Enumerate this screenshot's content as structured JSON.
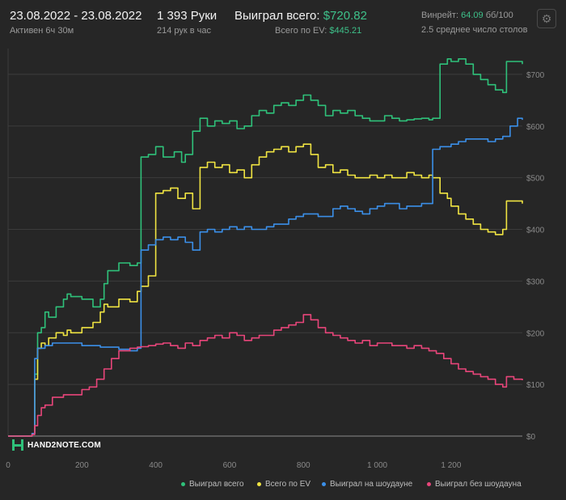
{
  "header": {
    "date_range": "23.08.2022 - 23.08.2022",
    "active": "Активен 6ч 30м",
    "hands": "1 393 Руки",
    "hands_per_hour": "214 рук в час",
    "won_total_label": "Выиграл всего:",
    "won_total_value": "$720.82",
    "ev_total_label": "Всего по EV:",
    "ev_total_value": "$445.21",
    "winrate_label": "Винрейт:",
    "winrate_value": "64.09",
    "winrate_unit": "бб/100",
    "avg_tables": "2.5 среднее число столов"
  },
  "logo": {
    "text": "HAND2NOTE.COM"
  },
  "colors": {
    "green": "#2fc17a",
    "yellow": "#f0e442",
    "blue": "#3b8fe8",
    "pink": "#e8457a"
  },
  "chart_data": {
    "type": "line",
    "x_tick_labels": [
      "0",
      "200",
      "400",
      "600",
      "800",
      "1 000",
      "1 200"
    ],
    "y_tick_labels": [
      "$0",
      "$100",
      "$200",
      "$300",
      "$400",
      "$500",
      "$600",
      "$700"
    ],
    "xlim": [
      0,
      1393
    ],
    "ylim": [
      0,
      750
    ],
    "grid": true,
    "legend_position": "bottom-right",
    "series": [
      {
        "name": "Выиграл всего",
        "color": "#2fc17a",
        "x": [
          0,
          65,
          72,
          80,
          90,
          100,
          110,
          130,
          150,
          160,
          170,
          200,
          230,
          250,
          260,
          270,
          300,
          330,
          350,
          360,
          380,
          400,
          420,
          450,
          470,
          480,
          500,
          520,
          540,
          560,
          580,
          600,
          620,
          640,
          660,
          680,
          700,
          720,
          740,
          760,
          780,
          800,
          820,
          840,
          860,
          880,
          900,
          920,
          940,
          960,
          980,
          1000,
          1020,
          1040,
          1060,
          1080,
          1100,
          1120,
          1140,
          1150,
          1170,
          1190,
          1200,
          1220,
          1240,
          1260,
          1280,
          1300,
          1320,
          1340,
          1350,
          1370,
          1393
        ],
        "y": [
          0,
          5,
          120,
          200,
          210,
          240,
          230,
          250,
          265,
          275,
          270,
          265,
          250,
          265,
          295,
          320,
          335,
          330,
          335,
          540,
          545,
          560,
          540,
          550,
          530,
          545,
          590,
          615,
          600,
          610,
          605,
          610,
          595,
          600,
          620,
          630,
          625,
          640,
          645,
          640,
          650,
          660,
          650,
          640,
          620,
          630,
          625,
          630,
          620,
          615,
          610,
          610,
          620,
          615,
          610,
          612,
          614,
          615,
          612,
          615,
          720,
          730,
          725,
          730,
          720,
          700,
          690,
          680,
          670,
          665,
          725,
          725,
          720
        ]
      },
      {
        "name": "Всего по EV",
        "color": "#f0e442",
        "x": [
          0,
          65,
          72,
          80,
          90,
          100,
          110,
          130,
          150,
          160,
          170,
          200,
          230,
          250,
          260,
          270,
          300,
          330,
          350,
          360,
          380,
          400,
          420,
          440,
          460,
          480,
          500,
          520,
          540,
          560,
          580,
          600,
          620,
          640,
          660,
          680,
          700,
          720,
          740,
          760,
          780,
          800,
          820,
          840,
          860,
          880,
          900,
          920,
          940,
          960,
          980,
          1000,
          1020,
          1040,
          1060,
          1080,
          1100,
          1120,
          1140,
          1150,
          1170,
          1190,
          1200,
          1220,
          1240,
          1260,
          1280,
          1300,
          1320,
          1340,
          1350,
          1370,
          1393
        ],
        "y": [
          0,
          5,
          110,
          170,
          180,
          175,
          190,
          200,
          195,
          205,
          200,
          210,
          220,
          240,
          255,
          250,
          265,
          260,
          280,
          290,
          310,
          470,
          475,
          480,
          460,
          470,
          440,
          520,
          530,
          520,
          525,
          510,
          515,
          500,
          525,
          540,
          550,
          555,
          560,
          550,
          560,
          565,
          545,
          520,
          525,
          510,
          515,
          505,
          500,
          500,
          505,
          500,
          505,
          500,
          500,
          510,
          505,
          500,
          505,
          500,
          470,
          460,
          445,
          430,
          420,
          410,
          400,
          395,
          390,
          400,
          455,
          455,
          450
        ]
      },
      {
        "name": "Выиграл на шоудауне",
        "color": "#3b8fe8",
        "x": [
          0,
          65,
          72,
          80,
          100,
          120,
          150,
          200,
          250,
          300,
          330,
          350,
          360,
          380,
          400,
          420,
          440,
          460,
          480,
          500,
          520,
          540,
          560,
          580,
          600,
          620,
          640,
          660,
          680,
          700,
          720,
          740,
          760,
          780,
          800,
          820,
          840,
          860,
          880,
          900,
          920,
          940,
          960,
          980,
          1000,
          1020,
          1040,
          1060,
          1080,
          1100,
          1120,
          1140,
          1150,
          1170,
          1200,
          1220,
          1240,
          1260,
          1280,
          1300,
          1320,
          1340,
          1360,
          1380,
          1393
        ],
        "y": [
          0,
          5,
          150,
          170,
          175,
          180,
          180,
          175,
          172,
          168,
          165,
          170,
          360,
          370,
          380,
          385,
          380,
          385,
          375,
          360,
          395,
          400,
          395,
          400,
          405,
          400,
          405,
          400,
          400,
          405,
          410,
          410,
          420,
          425,
          430,
          430,
          425,
          425,
          440,
          445,
          440,
          435,
          430,
          440,
          445,
          450,
          450,
          440,
          445,
          445,
          450,
          450,
          555,
          560,
          565,
          570,
          575,
          575,
          575,
          570,
          575,
          580,
          600,
          615,
          612
        ]
      },
      {
        "name": "Выиграл без шоудауна",
        "color": "#e8457a",
        "x": [
          0,
          65,
          72,
          80,
          90,
          100,
          120,
          150,
          200,
          220,
          240,
          260,
          280,
          300,
          330,
          350,
          360,
          380,
          400,
          420,
          440,
          460,
          480,
          500,
          520,
          540,
          560,
          580,
          600,
          620,
          640,
          660,
          680,
          700,
          720,
          740,
          760,
          780,
          800,
          820,
          840,
          860,
          880,
          900,
          920,
          940,
          960,
          980,
          1000,
          1020,
          1040,
          1060,
          1080,
          1100,
          1120,
          1140,
          1160,
          1180,
          1200,
          1220,
          1240,
          1260,
          1280,
          1300,
          1320,
          1340,
          1350,
          1370,
          1393
        ],
        "y": [
          0,
          3,
          20,
          40,
          55,
          60,
          75,
          80,
          90,
          95,
          110,
          130,
          150,
          165,
          170,
          172,
          173,
          175,
          178,
          180,
          175,
          170,
          180,
          175,
          185,
          190,
          195,
          190,
          200,
          195,
          185,
          190,
          195,
          195,
          205,
          210,
          215,
          220,
          235,
          225,
          210,
          200,
          195,
          190,
          185,
          180,
          185,
          175,
          180,
          180,
          175,
          175,
          170,
          175,
          170,
          165,
          160,
          150,
          140,
          130,
          125,
          120,
          115,
          110,
          100,
          95,
          115,
          110,
          108
        ]
      }
    ]
  },
  "legend": [
    {
      "label": "Выиграл всего",
      "color": "#2fc17a"
    },
    {
      "label": "Всего по EV",
      "color": "#f0e442"
    },
    {
      "label": "Выиграл на шоудауне",
      "color": "#3b8fe8"
    },
    {
      "label": "Выиграл без шоудауна",
      "color": "#e8457a"
    }
  ]
}
